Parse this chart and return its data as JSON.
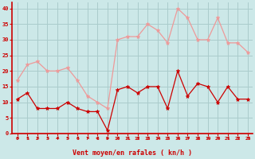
{
  "x": [
    0,
    1,
    2,
    3,
    4,
    5,
    6,
    7,
    8,
    9,
    10,
    11,
    12,
    13,
    14,
    15,
    16,
    17,
    18,
    19,
    20,
    21,
    22,
    23
  ],
  "wind_mean": [
    11,
    13,
    8,
    8,
    8,
    10,
    8,
    7,
    7,
    1,
    14,
    15,
    13,
    15,
    15,
    8,
    20,
    12,
    16,
    15,
    10,
    15,
    11,
    11
  ],
  "wind_gust": [
    17,
    22,
    23,
    20,
    20,
    21,
    17,
    12,
    10,
    8,
    30,
    31,
    31,
    35,
    33,
    29,
    40,
    37,
    30,
    30,
    37,
    29,
    29,
    26
  ],
  "bg_color": "#cce8e8",
  "grid_color": "#aacccc",
  "mean_color": "#cc0000",
  "gust_color": "#ee9999",
  "xlabel": "Vent moyen/en rafales ( kn/h )",
  "xlabel_color": "#cc0000",
  "tick_color": "#cc0000",
  "ylim": [
    0,
    42
  ],
  "yticks": [
    0,
    5,
    10,
    15,
    20,
    25,
    30,
    35,
    40
  ],
  "figsize": [
    3.2,
    2.0
  ],
  "dpi": 100
}
